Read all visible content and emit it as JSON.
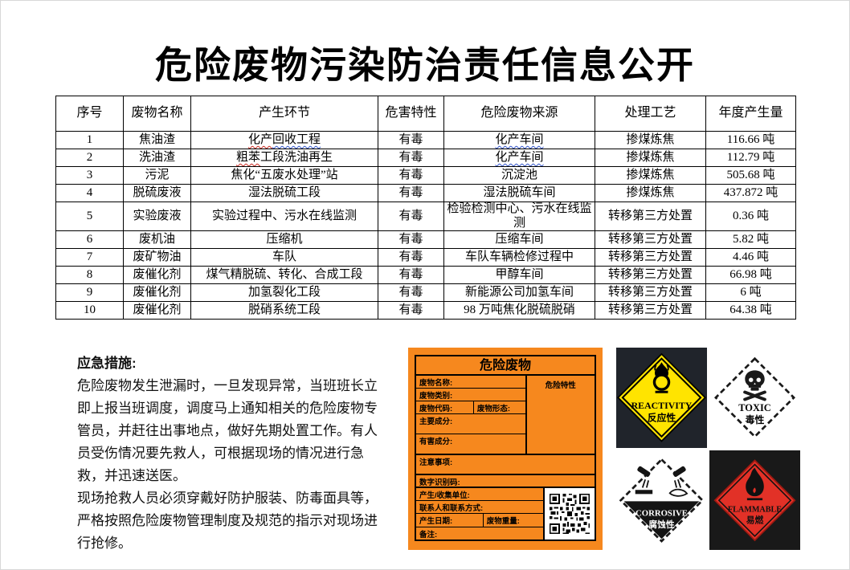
{
  "page": {
    "title": "危险废物污染防治责任信息公开"
  },
  "table": {
    "headers": [
      "序号",
      "废物名称",
      "产生环节",
      "危害特性",
      "危险废物来源",
      "处理工艺",
      "年度产生量"
    ],
    "rows": [
      {
        "no": "1",
        "name": "焦油渣",
        "stage": [
          {
            "t": "化产",
            "u": "red"
          },
          {
            "t": "回收工程",
            "u": "blue"
          }
        ],
        "hazard": "有毒",
        "source": [
          {
            "t": "化产车间",
            "u": "blue"
          }
        ],
        "process": "掺煤炼焦",
        "amount": "116.66 吨"
      },
      {
        "no": "2",
        "name": "洗油渣",
        "stage": [
          {
            "t": "粗苯",
            "u": "red"
          },
          {
            "t": "工段洗油再生"
          }
        ],
        "hazard": "有毒",
        "source": [
          {
            "t": "化产车间",
            "u": "blue"
          }
        ],
        "process": "掺煤炼焦",
        "amount": "112.79 吨"
      },
      {
        "no": "3",
        "name": "污泥",
        "stage": [
          {
            "t": "焦化“五废水处理”站"
          }
        ],
        "hazard": "有毒",
        "source": [
          {
            "t": "沉淀池"
          }
        ],
        "process": "掺煤炼焦",
        "amount": "505.68 吨"
      },
      {
        "no": "4",
        "name": "脱硫废液",
        "stage": [
          {
            "t": "湿法脱硫工段"
          }
        ],
        "hazard": "有毒",
        "source": [
          {
            "t": "湿法脱硫车间"
          }
        ],
        "process": "掺煤炼焦",
        "amount": "437.872 吨"
      },
      {
        "no": "5",
        "name": "实验废液",
        "stage": [
          {
            "t": "实验过程中、污水在线监测"
          }
        ],
        "hazard": "有毒",
        "source": [
          {
            "t": "检验检测中心、污水在线监测"
          }
        ],
        "process": "转移第三方处置",
        "amount": "0.36 吨"
      },
      {
        "no": "6",
        "name": "废机油",
        "stage": [
          {
            "t": "压缩机"
          }
        ],
        "hazard": "有毒",
        "source": [
          {
            "t": "压缩车间"
          }
        ],
        "process": "转移第三方处置",
        "amount": "5.82 吨"
      },
      {
        "no": "7",
        "name": "废矿物油",
        "stage": [
          {
            "t": "车队"
          }
        ],
        "hazard": "有毒",
        "source": [
          {
            "t": "车队车辆检修过程中"
          }
        ],
        "process": "转移第三方处置",
        "amount": "4.46 吨"
      },
      {
        "no": "8",
        "name": "废催化剂",
        "stage": [
          {
            "t": "煤气精脱硫、转化、合成工段"
          }
        ],
        "hazard": "有毒",
        "source": [
          {
            "t": "甲醇车间"
          }
        ],
        "process": "转移第三方处置",
        "amount": "66.98 吨"
      },
      {
        "no": "9",
        "name": "废催化剂",
        "stage": [
          {
            "t": "加氢裂化工段"
          }
        ],
        "hazard": "有毒",
        "source": [
          {
            "t": "新能源公司加氢车间"
          }
        ],
        "process": "转移第三方处置",
        "amount": "6 吨"
      },
      {
        "no": "10",
        "name": "废催化剂",
        "stage": [
          {
            "t": "脱硝系统工段"
          }
        ],
        "hazard": "有毒",
        "source": [
          {
            "t": "98 万吨焦化脱硫脱硝"
          }
        ],
        "process": "转移第三方处置",
        "amount": "64.38 吨"
      }
    ]
  },
  "emergency": {
    "heading": "应急措施:",
    "para1": "危险废物发生泄漏时，一旦发现异常，当班班长立即上报当班调度，调度马上通知相关的危险废物专管员，并赶往出事地点，做好先期处置工作。有人员受伤情况要先救人，可根据现场的情况进行急救，并迅速送医。",
    "para2": "现场抢救人员必须穿戴好防护服装、防毒面具等，严格按照危险废物管理制度及规范的指示对现场进行抢修。"
  },
  "label": {
    "title": "危险废物",
    "hazard_trait": "危险特性",
    "fields": {
      "name": "废物名称:",
      "category": "废物类别:",
      "code": "废物代码:",
      "form": "废物形态:",
      "main": "主要成分:",
      "harmful": "有害成分:",
      "notes": "注意事项:",
      "digital_id": "数字识别码:",
      "unit": "产生/收集单位:",
      "contact": "联系人和联系方式:",
      "date": "产生日期:",
      "weight": "废物重量:",
      "remark": "备注:"
    }
  },
  "placards": [
    {
      "en": "REACTIVITY",
      "zh": "反应性"
    },
    {
      "en": "TOXIC",
      "zh": "毒性"
    },
    {
      "en": "CORROSIVE",
      "zh": "腐蚀性"
    },
    {
      "en": "FLAMMABLE",
      "zh": "易燃"
    }
  ],
  "icons": {
    "placard_symbols": [
      "oxidizer-flame-over-circle",
      "skull-and-crossbones",
      "corrosive-liquid-pour",
      "flame"
    ],
    "label_code": "qr-code"
  },
  "colors": {
    "label_orange": "#f6881e",
    "placard_yellow": "#ffe400",
    "placard_red": "#e23127",
    "reactivity_tile_bg": "#20242b",
    "flammable_tile_bg": "#191919",
    "spellcheck_blue": "#3355cc",
    "spellcheck_red": "#cc2a22"
  }
}
